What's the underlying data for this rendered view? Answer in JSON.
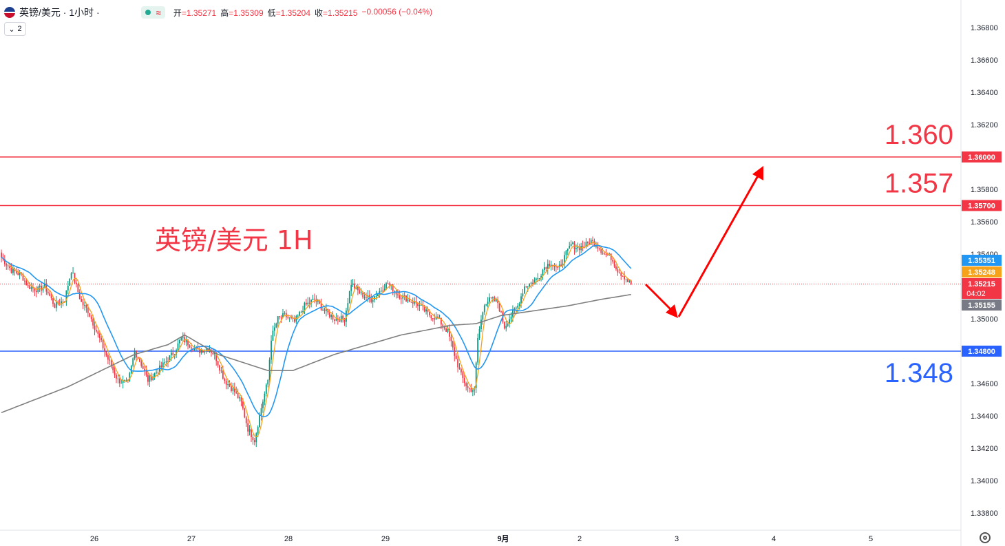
{
  "header": {
    "title": "英镑/美元 · 1小时 ·",
    "approx_symbol": "≈",
    "open_label": "开",
    "open_value": "=1.35271",
    "high_label": "高",
    "high_value": "=1.35309",
    "low_label": "低",
    "low_value": "=1.35204",
    "close_label": "收",
    "close_value": "=1.35215",
    "change": "−0.00056 (−0.04%)",
    "indicator_count": "2"
  },
  "annotation": "英镑/美元 1H",
  "colors": {
    "up": "#089981",
    "down": "#f23645",
    "ma_fast": "#f7a21b",
    "ma_mid": "#2196f3",
    "ma_slow": "#7f7f7f",
    "resistance": "#f23645",
    "support": "#2962ff",
    "arrow": "#ff0000"
  },
  "chart_data": {
    "type": "candlestick",
    "y_range": [
      1.337,
      1.369
    ],
    "y_ticks": [
      "1.36800",
      "1.36600",
      "1.36400",
      "1.36200",
      "1.36000",
      "1.35800",
      "1.35600",
      "1.35400",
      "1.35200",
      "1.35000",
      "1.34800",
      "1.34600",
      "1.34400",
      "1.34200",
      "1.34000",
      "1.33800"
    ],
    "x_labels": [
      "26",
      "27",
      "28",
      "29",
      "9月",
      "2",
      "3",
      "4",
      "5"
    ],
    "levels": [
      {
        "value": 1.36,
        "label": "1.360",
        "axis_label": "1.36000",
        "color": "#f23645"
      },
      {
        "value": 1.357,
        "label": "1.357",
        "axis_label": "1.35700",
        "color": "#f23645"
      },
      {
        "value": 1.348,
        "label": "1.348",
        "axis_label": "1.34800",
        "color": "#2962ff"
      }
    ],
    "price_tags": [
      {
        "value": 1.35351,
        "text": "1.35351",
        "bg": "#2196f3"
      },
      {
        "value": 1.35248,
        "text": "1.35248",
        "bg": "#f7a21b"
      },
      {
        "value": 1.35215,
        "text": "1.35215",
        "sub": "04:02",
        "bg": "#f23645"
      },
      {
        "value": 1.35155,
        "text": "1.35155",
        "bg": "#787b86"
      }
    ],
    "last_price": 1.35215,
    "anchors": [
      [
        0,
        1.3538
      ],
      [
        6,
        1.353
      ],
      [
        12,
        1.3527
      ],
      [
        16,
        1.352
      ],
      [
        22,
        1.3518
      ],
      [
        26,
        1.352
      ],
      [
        32,
        1.3508
      ],
      [
        38,
        1.3512
      ],
      [
        42,
        1.353
      ],
      [
        48,
        1.351
      ],
      [
        52,
        1.3505
      ],
      [
        58,
        1.349
      ],
      [
        64,
        1.3475
      ],
      [
        70,
        1.3462
      ],
      [
        76,
        1.346
      ],
      [
        80,
        1.348
      ],
      [
        84,
        1.3472
      ],
      [
        88,
        1.3462
      ],
      [
        94,
        1.3468
      ],
      [
        100,
        1.3475
      ],
      [
        104,
        1.348
      ],
      [
        108,
        1.3488
      ],
      [
        112,
        1.3485
      ],
      [
        118,
        1.348
      ],
      [
        124,
        1.3482
      ],
      [
        128,
        1.3478
      ],
      [
        134,
        1.3462
      ],
      [
        140,
        1.3455
      ],
      [
        144,
        1.3448
      ],
      [
        148,
        1.3432
      ],
      [
        152,
        1.3425
      ],
      [
        156,
        1.3445
      ],
      [
        160,
        1.3462
      ],
      [
        162,
        1.3488
      ],
      [
        166,
        1.35
      ],
      [
        170,
        1.3502
      ],
      [
        176,
        1.3498
      ],
      [
        182,
        1.3508
      ],
      [
        188,
        1.3512
      ],
      [
        194,
        1.3505
      ],
      [
        200,
        1.35
      ],
      [
        206,
        1.35
      ],
      [
        210,
        1.3522
      ],
      [
        216,
        1.3515
      ],
      [
        222,
        1.3512
      ],
      [
        228,
        1.3518
      ],
      [
        232,
        1.3522
      ],
      [
        238,
        1.3515
      ],
      [
        244,
        1.3512
      ],
      [
        250,
        1.3509
      ],
      [
        256,
        1.3503
      ],
      [
        262,
        1.35
      ],
      [
        268,
        1.3492
      ],
      [
        272,
        1.3478
      ],
      [
        276,
        1.3465
      ],
      [
        280,
        1.3457
      ],
      [
        284,
        1.3456
      ],
      [
        286,
        1.3488
      ],
      [
        290,
        1.351
      ],
      [
        294,
        1.3512
      ],
      [
        298,
        1.351
      ],
      [
        302,
        1.3495
      ],
      [
        306,
        1.3502
      ],
      [
        310,
        1.3508
      ],
      [
        314,
        1.352
      ],
      [
        318,
        1.3522
      ],
      [
        322,
        1.3525
      ],
      [
        326,
        1.3532
      ],
      [
        330,
        1.3535
      ],
      [
        334,
        1.353
      ],
      [
        338,
        1.3538
      ],
      [
        342,
        1.3546
      ],
      [
        346,
        1.3544
      ],
      [
        350,
        1.3545
      ],
      [
        354,
        1.3548
      ],
      [
        358,
        1.3545
      ],
      [
        362,
        1.354
      ],
      [
        366,
        1.3538
      ],
      [
        370,
        1.353
      ],
      [
        374,
        1.3526
      ],
      [
        378,
        1.3521
      ]
    ],
    "sma_slow_anchors": [
      [
        0,
        1.3442
      ],
      [
        40,
        1.3458
      ],
      [
        80,
        1.3478
      ],
      [
        100,
        1.3484
      ],
      [
        110,
        1.349
      ],
      [
        130,
        1.3478
      ],
      [
        160,
        1.3468
      ],
      [
        175,
        1.3468
      ],
      [
        200,
        1.3478
      ],
      [
        240,
        1.349
      ],
      [
        270,
        1.3496
      ],
      [
        285,
        1.3497
      ],
      [
        300,
        1.3502
      ],
      [
        320,
        1.3505
      ],
      [
        340,
        1.3508
      ],
      [
        360,
        1.3512
      ],
      [
        378,
        1.3515
      ]
    ],
    "forecast_arrows": [
      {
        "from": [
          1.3521,
          1.3503
        ],
        "note": "down then up"
      }
    ]
  }
}
